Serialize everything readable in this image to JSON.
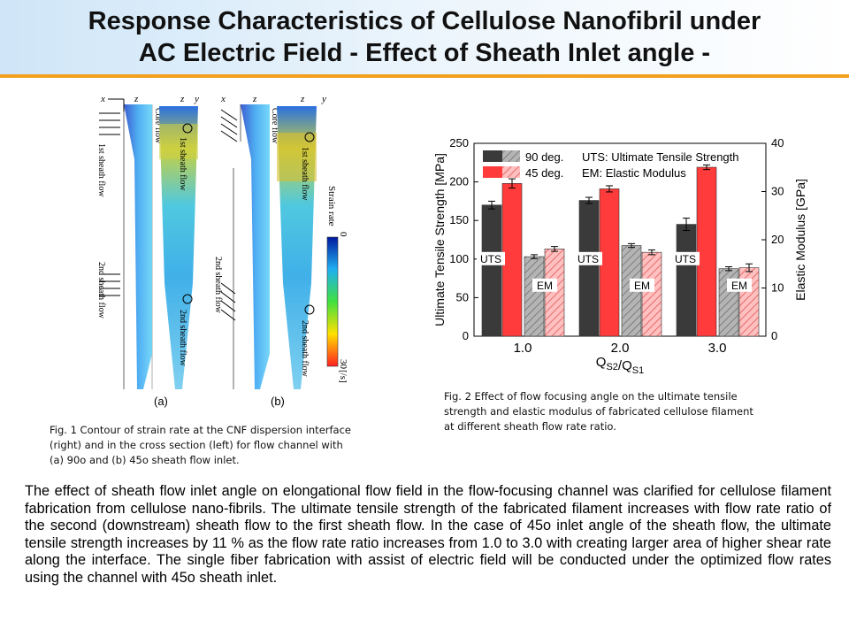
{
  "title": {
    "line1": "Response Characteristics of Cellulose Nanofibril under",
    "line2": "AC Electric Field - Effect of Sheath Inlet angle -"
  },
  "fig1": {
    "labels": {
      "x": "x",
      "z": "z",
      "y": "y",
      "core_flow": "Core flow",
      "first_sheath": "1st sheath flow",
      "second_sheath": "2nd sheath flow",
      "strain_rate": "Strain rate",
      "scale_min": "0",
      "scale_max": "30",
      "unit": "[/s]"
    },
    "sub_a": "(a)",
    "sub_b": "(b)",
    "caption": [
      "Fig. 1  Contour of strain rate at the CNF dispersion interface",
      "(right) and in the cross section (left) for flow channel with",
      "(a) 90o and (b) 45o sheath flow inlet."
    ]
  },
  "fig2_caption": [
    "Fig. 2 Effect of flow focusing angle on the ultimate tensile",
    "strength and elastic modulus of fabricated cellulose filament",
    "at different sheath flow rate ratio."
  ],
  "body_text": "The effect of sheath flow inlet angle on elongational flow field in the flow-focusing channel was clarified for cellulose filament fabrication from cellulose nano-fibrils. The ultimate tensile strength of the fabricated filament increases with flow rate ratio of the second (downstream) sheath flow to the first sheath flow. In the case of 45o inlet angle of the sheath flow, the ultimate tensile strength increases by 11 % as the flow rate ratio increases from 1.0 to 3.0 with creating larger area of higher shear rate along the interface. The single fiber fabrication with assist of electric field will be conducted under the optimized flow rates using the channel with 45o sheath inlet.",
  "chart_data": {
    "type": "bar",
    "categories": [
      "1.0",
      "2.0",
      "3.0"
    ],
    "xlabel": "QS2/QS1",
    "ylabel_left": "Ultimate Tensile Strength  [MPa]",
    "ylabel_right": "Elastic Modulus  [GPa]",
    "ylim_left": [
      0,
      250
    ],
    "ylim_right": [
      0,
      40
    ],
    "yticks_left": [
      "0",
      "50",
      "100",
      "150",
      "200",
      "250"
    ],
    "yticks_right": [
      "0",
      "10",
      "20",
      "30",
      "40"
    ],
    "legend": [
      "90 deg.",
      "45 deg."
    ],
    "legend_text": [
      "UTS: Ultimate Tensile Strength",
      "EM: Elastic Modulus"
    ],
    "group_labels": [
      "UTS",
      "EM"
    ],
    "series": [
      {
        "name": "90 deg.",
        "metric": "UTS",
        "axis": "left",
        "values": [
          170,
          176,
          145
        ],
        "errors": [
          5,
          4,
          8
        ],
        "color": "#3a3a3a"
      },
      {
        "name": "45 deg.",
        "metric": "UTS",
        "axis": "left",
        "values": [
          198,
          191,
          219
        ],
        "errors": [
          6,
          4,
          3
        ],
        "color": "#ff3b3b"
      },
      {
        "name": "90 deg.",
        "metric": "EM",
        "axis": "right",
        "values": [
          16.5,
          18.8,
          14.0
        ],
        "errors": [
          0.4,
          0.4,
          0.4
        ],
        "color": "#9a9a9a"
      },
      {
        "name": "45 deg.",
        "metric": "EM",
        "axis": "right",
        "values": [
          18.1,
          17.4,
          14.2
        ],
        "errors": [
          0.5,
          0.5,
          0.8
        ],
        "color": "#ffb3b3"
      }
    ],
    "colors": {
      "uts90": "#3a3a3a",
      "uts45": "#ff3b3b",
      "em90": "#aaaaaa",
      "em45": "#ff9a9a"
    }
  }
}
